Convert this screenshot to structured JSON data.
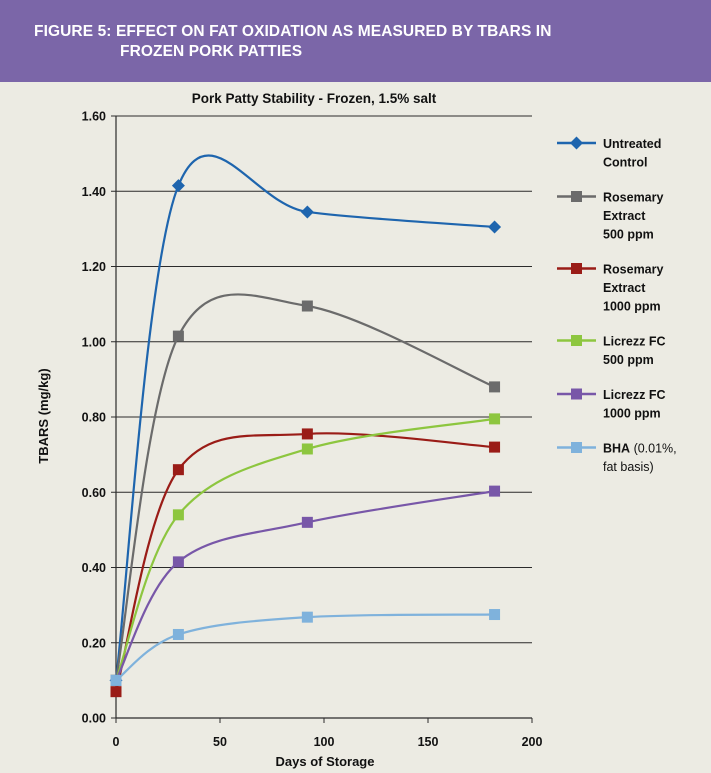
{
  "figure": {
    "title_line1": "FIGURE 5: EFFECT ON FAT OXIDATION AS MEASURED BY TBARS IN",
    "title_line2": "FROZEN PORK PATTIES"
  },
  "colors": {
    "header_bg": "#7b66a8",
    "background": "#ecebe3"
  },
  "chart_data": {
    "type": "line",
    "title": "Pork Patty Stability - Frozen, 1.5% salt",
    "xlabel": "Days of Storage",
    "ylabel": "TBARS (mg/kg)",
    "xlim": [
      0,
      200
    ],
    "ylim": [
      0,
      1.6
    ],
    "xticks": [
      0,
      50,
      100,
      150,
      200
    ],
    "yticks": [
      0,
      0.2,
      0.4,
      0.6,
      0.8,
      1.0,
      1.2,
      1.4,
      1.6
    ],
    "ytick_labels": [
      "0.00",
      "0.20",
      "0.40",
      "0.60",
      "0.80",
      "1.00",
      "1.20",
      "1.40",
      "1.60"
    ],
    "grid": "horizontal",
    "legend_position": "right",
    "series": [
      {
        "name": "Untreated Control",
        "legend_lines": [
          "Untreated",
          "Control"
        ],
        "color": "#1e65ae",
        "marker": "diamond",
        "x": [
          0,
          30,
          92,
          182
        ],
        "y": [
          0.1,
          1.415,
          1.345,
          1.305
        ]
      },
      {
        "name": "Rosemary Extract 500 ppm",
        "legend_lines": [
          "Rosemary",
          "Extract",
          "500 ppm"
        ],
        "color": "#6b6b6b",
        "marker": "square",
        "x": [
          0,
          30,
          92,
          182
        ],
        "y": [
          0.1,
          1.015,
          1.095,
          0.88
        ]
      },
      {
        "name": "Rosemary Extract 1000 ppm",
        "legend_lines": [
          "Rosemary",
          "Extract",
          "1000 ppm"
        ],
        "color": "#9a1c17",
        "marker": "square",
        "x": [
          0,
          30,
          92,
          182
        ],
        "y": [
          0.07,
          0.66,
          0.755,
          0.72
        ]
      },
      {
        "name": "Licrezz FC 500 ppm",
        "legend_lines": [
          "Licrezz FC",
          "500 ppm"
        ],
        "color": "#8dc63f",
        "marker": "square",
        "x": [
          0,
          30,
          92,
          182
        ],
        "y": [
          0.1,
          0.54,
          0.715,
          0.795
        ]
      },
      {
        "name": "Licrezz FC 1000 ppm",
        "legend_lines": [
          "Licrezz FC",
          "1000 ppm"
        ],
        "color": "#7857a8",
        "marker": "square",
        "x": [
          0,
          30,
          92,
          182
        ],
        "y": [
          0.1,
          0.415,
          0.52,
          0.603
        ]
      },
      {
        "name": "BHA (0.01%, fat basis)",
        "legend_lines": [
          "BHA (0.01%,",
          "fat basis)"
        ],
        "color": "#7fb2dc",
        "marker": "square",
        "x": [
          0,
          30,
          92,
          182
        ],
        "y": [
          0.1,
          0.222,
          0.268,
          0.275
        ]
      }
    ]
  }
}
